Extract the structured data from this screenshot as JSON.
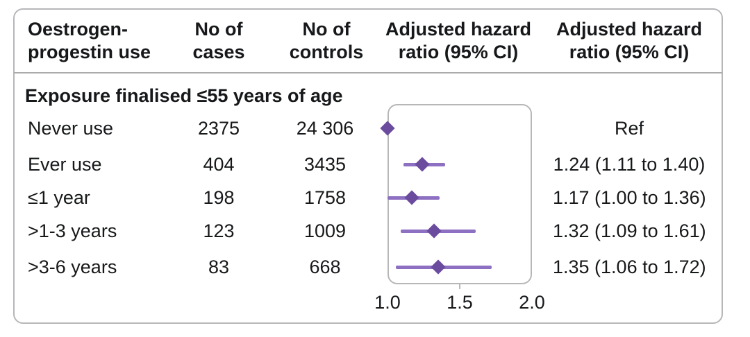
{
  "figure": {
    "header": {
      "exposure": {
        "line1": "Oestrogen-",
        "line2": "progestin use"
      },
      "cases": {
        "line1": "No of",
        "line2": "cases"
      },
      "controls": {
        "line1": "No of",
        "line2": "controls"
      },
      "plot": {
        "line1": "Adjusted hazard",
        "line2": "ratio (95% CI)"
      },
      "hr_text": {
        "line1": "Adjusted hazard",
        "line2": "ratio (95% CI)"
      }
    },
    "section_title": "Exposure finalised ≤55 years of age",
    "rows": [
      {
        "label": "Never use",
        "cases": "2375",
        "controls": "24 306",
        "hr_display": "Ref"
      },
      {
        "label": "Ever use",
        "cases": "404",
        "controls": "3435",
        "hr_display": "1.24 (1.11 to 1.40)"
      },
      {
        "label": "≤1 year",
        "cases": "198",
        "controls": "1758",
        "hr_display": "1.17 (1.00 to 1.36)"
      },
      {
        "label": ">1-3 years",
        "cases": "123",
        "controls": "1009",
        "hr_display": "1.32 (1.09 to 1.61)"
      },
      {
        "label": ">3-6 years",
        "cases": "83",
        "controls": "668",
        "hr_display": "1.35 (1.06 to 1.72)"
      }
    ]
  },
  "chart_data": {
    "type": "scatter",
    "subtype": "forest-plot",
    "title": "Adjusted hazard ratio (95% CI)",
    "section": "Exposure finalised ≤55 years of age",
    "x_axis": {
      "range": [
        1.0,
        2.0
      ],
      "ticks": [
        1.0,
        1.5,
        2.0
      ],
      "tick_labels": [
        "1.0",
        "1.5",
        "2.0"
      ]
    },
    "points": [
      {
        "label": "Never use",
        "hr": 1.0,
        "ci_low": null,
        "ci_high": null,
        "note": "Ref"
      },
      {
        "label": "Ever use",
        "hr": 1.24,
        "ci_low": 1.11,
        "ci_high": 1.4
      },
      {
        "label": "≤1 year",
        "hr": 1.17,
        "ci_low": 1.0,
        "ci_high": 1.36
      },
      {
        "label": ">1-3 years",
        "hr": 1.32,
        "ci_low": 1.09,
        "ci_high": 1.61
      },
      {
        "label": ">3-6 years",
        "hr": 1.35,
        "ci_low": 1.06,
        "ci_high": 1.72
      }
    ]
  },
  "colors": {
    "diamond": "#6b4b9e",
    "ci_line": "#8d70c1",
    "border": "#b7b7b9",
    "text": "#16181a"
  }
}
